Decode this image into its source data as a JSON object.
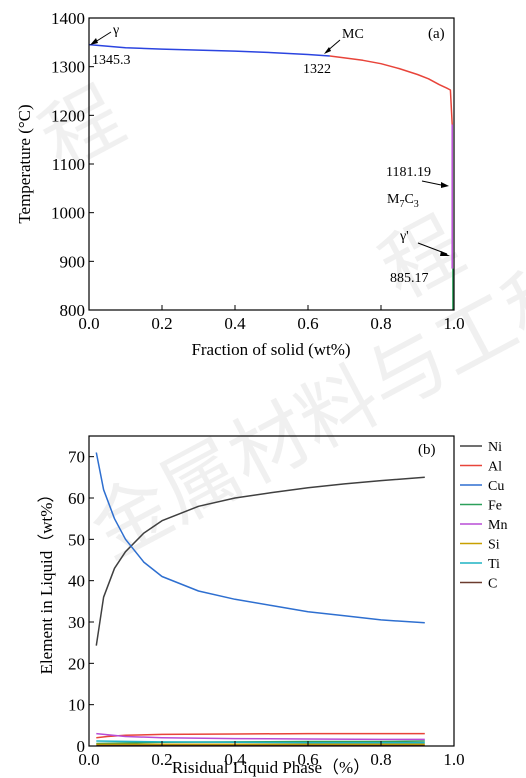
{
  "chart_data": [
    {
      "type": "line",
      "panel_label": "(a)",
      "xlabel": "Fraction of solid (wt%)",
      "ylabel": "Temperature (°C)",
      "xlim": [
        0.0,
        1.0
      ],
      "ylim": [
        800,
        1400
      ],
      "xticks": [
        "0.0",
        "0.2",
        "0.4",
        "0.6",
        "0.8",
        "1.0"
      ],
      "yticks": [
        "800",
        "900",
        "1000",
        "1100",
        "1200",
        "1300",
        "1400"
      ],
      "series": [
        {
          "color": "#2b44e0",
          "x": [
            0.0,
            0.1,
            0.2,
            0.3,
            0.4,
            0.5,
            0.6,
            0.66
          ],
          "y": [
            1345.3,
            1339,
            1336,
            1334,
            1332,
            1329,
            1325,
            1322
          ]
        },
        {
          "color": "#e8443a",
          "x": [
            0.66,
            0.7,
            0.75,
            0.8,
            0.85,
            0.9,
            0.93,
            0.96,
            0.98,
            0.99,
            0.995
          ],
          "y": [
            1322,
            1318,
            1313,
            1306,
            1296,
            1284,
            1275,
            1263,
            1256,
            1252,
            1181.19
          ]
        },
        {
          "color": "#b84dd6",
          "x": [
            0.995,
            0.995
          ],
          "y": [
            1181.19,
            885.17
          ]
        },
        {
          "color": "#2ca05a",
          "x": [
            0.997,
            0.997
          ],
          "y": [
            885.17,
            800
          ]
        }
      ],
      "annotations": [
        {
          "text": "γ",
          "x": 0.0,
          "y": 1345.3
        },
        {
          "text": "1345.3",
          "x": 0.0,
          "y": 1345.3
        },
        {
          "text": "MC",
          "x": 0.66,
          "y": 1322
        },
        {
          "text": "1322",
          "x": 0.66,
          "y": 1322
        },
        {
          "text": "1181.19",
          "x": 0.995,
          "y": 1181.19
        },
        {
          "text": "M",
          "sub1": "7",
          "mid": "C",
          "sub2": "3",
          "x": 0.995,
          "y": 1181.19
        },
        {
          "text": "γ'",
          "x": 0.997,
          "y": 885.17
        },
        {
          "text": "885.17",
          "x": 0.997,
          "y": 885.17
        }
      ]
    },
    {
      "type": "line",
      "panel_label": "(b)",
      "xlabel": "Risidual Liquid Phase（%）",
      "ylabel": "Element in Liquid（wt%）",
      "xlim": [
        0.0,
        1.0
      ],
      "ylim": [
        0,
        75
      ],
      "xticks": [
        "0.0",
        "0.2",
        "0.4",
        "0.6",
        "0.8",
        "1.0"
      ],
      "yticks": [
        "0",
        "10",
        "20",
        "30",
        "40",
        "50",
        "60",
        "70"
      ],
      "legend": "outside-right",
      "series": [
        {
          "name": "Ni",
          "color": "#404040",
          "x": [
            0.02,
            0.04,
            0.07,
            0.1,
            0.15,
            0.2,
            0.3,
            0.4,
            0.5,
            0.6,
            0.7,
            0.8,
            0.92
          ],
          "y": [
            24.3,
            36,
            43,
            47,
            51.5,
            54.5,
            58,
            60,
            61.3,
            62.5,
            63.4,
            64.2,
            65
          ]
        },
        {
          "name": "Al",
          "color": "#e8443a",
          "x": [
            0.02,
            0.05,
            0.1,
            0.2,
            0.4,
            0.6,
            0.8,
            0.92
          ],
          "y": [
            2.0,
            2.3,
            2.6,
            2.8,
            2.9,
            3.0,
            3.0,
            3.0
          ]
        },
        {
          "name": "Cu",
          "color": "#2e6fd0",
          "x": [
            0.02,
            0.04,
            0.07,
            0.1,
            0.15,
            0.2,
            0.3,
            0.4,
            0.5,
            0.6,
            0.7,
            0.8,
            0.92
          ],
          "y": [
            71,
            62,
            55,
            50,
            44.5,
            41,
            37.5,
            35.5,
            34,
            32.5,
            31.5,
            30.5,
            29.8
          ]
        },
        {
          "name": "Fe",
          "color": "#2ca05a",
          "x": [
            0.02,
            0.2,
            0.4,
            0.6,
            0.8,
            0.92
          ],
          "y": [
            0.6,
            0.9,
            1.0,
            1.1,
            1.1,
            1.2
          ]
        },
        {
          "name": "Mn",
          "color": "#b84dd6",
          "x": [
            0.02,
            0.1,
            0.2,
            0.4,
            0.6,
            0.8,
            0.92
          ],
          "y": [
            3.0,
            2.3,
            2.0,
            1.8,
            1.7,
            1.6,
            1.6
          ]
        },
        {
          "name": "Si",
          "color": "#c8a000",
          "x": [
            0.02,
            0.2,
            0.4,
            0.6,
            0.8,
            0.92
          ],
          "y": [
            0.4,
            0.4,
            0.4,
            0.4,
            0.4,
            0.4
          ]
        },
        {
          "name": "Ti",
          "color": "#1fb3c4",
          "x": [
            0.02,
            0.2,
            0.4,
            0.6,
            0.8,
            0.92
          ],
          "y": [
            1.2,
            1.0,
            0.9,
            0.8,
            0.8,
            0.8
          ]
        },
        {
          "name": "C",
          "color": "#6b3b2e",
          "x": [
            0.02,
            0.2,
            0.4,
            0.6,
            0.8,
            0.92
          ],
          "y": [
            0.1,
            0.1,
            0.1,
            0.1,
            0.1,
            0.1
          ]
        }
      ]
    }
  ]
}
